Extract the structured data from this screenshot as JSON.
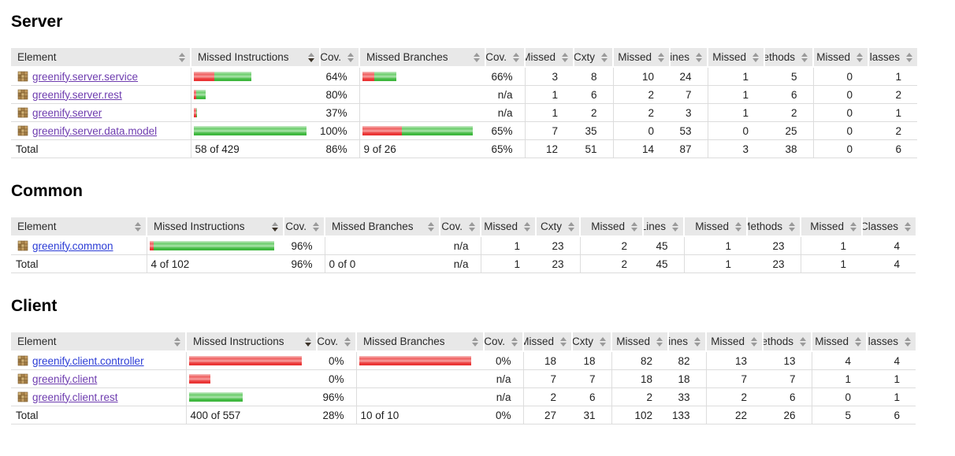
{
  "report": {
    "columns": [
      {
        "label": "Element",
        "kind": "element",
        "sort": "none"
      },
      {
        "label": "Missed Instructions",
        "kind": "bar",
        "sort": "desc"
      },
      {
        "label": "Cov.",
        "kind": "cov",
        "sort": "none"
      },
      {
        "label": "Missed Branches",
        "kind": "bar",
        "sort": "none"
      },
      {
        "label": "Cov.",
        "kind": "cov",
        "sort": "none"
      },
      {
        "label": "Missed",
        "kind": "num",
        "sort": "none"
      },
      {
        "label": "Cxty",
        "kind": "num",
        "sort": "none"
      },
      {
        "label": "Missed",
        "kind": "num",
        "sort": "none"
      },
      {
        "label": "Lines",
        "kind": "num",
        "sort": "none"
      },
      {
        "label": "Missed",
        "kind": "num",
        "sort": "none"
      },
      {
        "label": "Methods",
        "kind": "num",
        "sort": "none"
      },
      {
        "label": "Missed",
        "kind": "num",
        "sort": "none"
      },
      {
        "label": "Classes",
        "kind": "num",
        "sort": "none"
      }
    ],
    "colors": {
      "bar_red": "#e73030",
      "bar_green": "#3ab43a",
      "header_bg": "#e8e8e8",
      "link_visited": "#6e3caf",
      "link_new": "#2b3cd6"
    }
  },
  "sections": [
    {
      "id": "server",
      "title": "Server",
      "rows": [
        {
          "name": "greenify.server.service",
          "visited": true,
          "instr_bar": {
            "red": 26,
            "green": 47
          },
          "instr_cov": "64%",
          "branch_bar": {
            "red": 15,
            "green": 28
          },
          "branch_cov": "66%",
          "metrics": [
            "3",
            "8",
            "10",
            "24",
            "1",
            "5",
            "0",
            "1"
          ]
        },
        {
          "name": "greenify.server.rest",
          "visited": true,
          "instr_bar": {
            "red": 3,
            "green": 12
          },
          "instr_cov": "80%",
          "branch_bar": {
            "red": 0,
            "green": 0
          },
          "branch_cov": "n/a",
          "metrics": [
            "1",
            "6",
            "2",
            "7",
            "1",
            "6",
            "0",
            "2"
          ]
        },
        {
          "name": "greenify.server",
          "visited": true,
          "instr_bar": {
            "red": 3,
            "green": 1
          },
          "instr_cov": "37%",
          "branch_bar": {
            "red": 0,
            "green": 0
          },
          "branch_cov": "n/a",
          "metrics": [
            "1",
            "2",
            "2",
            "3",
            "1",
            "2",
            "0",
            "1"
          ]
        },
        {
          "name": "greenify.server.data.model",
          "visited": true,
          "instr_bar": {
            "red": 0,
            "green": 143
          },
          "instr_cov": "100%",
          "branch_bar": {
            "red": 50,
            "green": 90
          },
          "branch_cov": "65%",
          "metrics": [
            "7",
            "35",
            "0",
            "53",
            "0",
            "25",
            "0",
            "2"
          ]
        }
      ],
      "total": {
        "label": "Total",
        "instr": "58 of 429",
        "instr_cov": "86%",
        "branch": "9 of 26",
        "branch_cov": "65%",
        "metrics": [
          "12",
          "51",
          "14",
          "87",
          "3",
          "38",
          "0",
          "6"
        ]
      }
    },
    {
      "id": "common",
      "title": "Common",
      "rows": [
        {
          "name": "greenify.common",
          "visited": false,
          "instr_bar": {
            "red": 5,
            "green": 153
          },
          "instr_cov": "96%",
          "branch_bar": {
            "red": 0,
            "green": 0
          },
          "branch_cov": "n/a",
          "metrics": [
            "1",
            "23",
            "2",
            "45",
            "1",
            "23",
            "1",
            "4"
          ]
        }
      ],
      "total": {
        "label": "Total",
        "instr": "4 of 102",
        "instr_cov": "96%",
        "branch": "0 of 0",
        "branch_cov": "n/a",
        "metrics": [
          "1",
          "23",
          "2",
          "45",
          "1",
          "23",
          "1",
          "4"
        ]
      }
    },
    {
      "id": "client",
      "title": "Client",
      "rows": [
        {
          "name": "greenify.client.controller",
          "visited": false,
          "instr_bar": {
            "red": 143,
            "green": 0
          },
          "instr_cov": "0%",
          "branch_bar": {
            "red": 142,
            "green": 0
          },
          "branch_cov": "0%",
          "metrics": [
            "18",
            "18",
            "82",
            "82",
            "13",
            "13",
            "4",
            "4"
          ]
        },
        {
          "name": "greenify.client",
          "visited": true,
          "instr_bar": {
            "red": 27,
            "green": 0
          },
          "instr_cov": "0%",
          "branch_bar": {
            "red": 0,
            "green": 0
          },
          "branch_cov": "n/a",
          "metrics": [
            "7",
            "7",
            "18",
            "18",
            "7",
            "7",
            "1",
            "1"
          ]
        },
        {
          "name": "greenify.client.rest",
          "visited": true,
          "instr_bar": {
            "red": 0,
            "green": 68
          },
          "instr_cov": "96%",
          "branch_bar": {
            "red": 0,
            "green": 0
          },
          "branch_cov": "n/a",
          "metrics": [
            "2",
            "6",
            "2",
            "33",
            "2",
            "6",
            "0",
            "1"
          ]
        }
      ],
      "total": {
        "label": "Total",
        "instr": "400 of 557",
        "instr_cov": "28%",
        "branch": "10 of 10",
        "branch_cov": "0%",
        "metrics": [
          "27",
          "31",
          "102",
          "133",
          "22",
          "26",
          "5",
          "6"
        ]
      }
    }
  ]
}
